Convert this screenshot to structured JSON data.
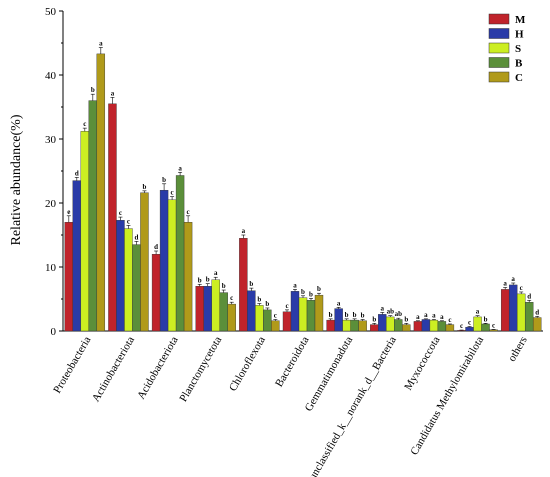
{
  "chart_data": {
    "type": "bar",
    "ylabel": "Relative abundance(%)",
    "ylim": [
      0,
      50
    ],
    "yticks": [
      0,
      10,
      20,
      30,
      40,
      50
    ],
    "grid": false,
    "legend_position": "top-right",
    "categories": [
      "Proteobacteria",
      "Actinobacteriota",
      "Acidobacteriota",
      "Planctomycetota",
      "Chloroflexota",
      "Bacteroidota",
      "Gemmatimonadota",
      "unclassified_k__norank_d__Bacteria",
      "Myxococcota",
      "Candidatus Methylomirabilota",
      "others"
    ],
    "series": [
      {
        "name": "M",
        "color": "#C0232B",
        "values": [
          17,
          35.5,
          12,
          7,
          14.5,
          3,
          1.7,
          1,
          1.5,
          0.1,
          6.5
        ],
        "errors": [
          1,
          1,
          0.5,
          0.3,
          0.5,
          0.3,
          0.2,
          0.2,
          0.1,
          0.05,
          0.3
        ],
        "letters": [
          "e",
          "a",
          "d",
          "b",
          "a",
          "c",
          "b",
          "b",
          "a",
          "c",
          "a"
        ]
      },
      {
        "name": "H",
        "color": "#2A3BA8",
        "values": [
          23.5,
          17.3,
          22,
          7,
          6.3,
          6.2,
          3.5,
          2.6,
          1.8,
          0.6,
          7.2
        ],
        "errors": [
          0.5,
          0.5,
          1,
          0.4,
          0.4,
          0.3,
          0.2,
          0.3,
          0.1,
          0.1,
          0.3
        ],
        "letters": [
          "d",
          "c",
          "b",
          "b",
          "b",
          "a",
          "a",
          "a",
          "a",
          "c",
          "a"
        ]
      },
      {
        "name": "S",
        "color": "#CCEE22",
        "values": [
          31.2,
          16,
          20.5,
          8,
          4,
          5.2,
          1.7,
          2.2,
          1.7,
          2.2,
          5.8
        ],
        "errors": [
          0.5,
          0.5,
          0.5,
          0.4,
          0.3,
          0.3,
          0.2,
          0.2,
          0.1,
          0.2,
          0.3
        ],
        "letters": [
          "c",
          "c",
          "c",
          "a",
          "b",
          "b",
          "b",
          "ab",
          "a",
          "a",
          "c"
        ]
      },
      {
        "name": "B",
        "color": "#5B8F3A",
        "values": [
          36,
          13.5,
          24.3,
          6,
          3.3,
          4.8,
          1.7,
          1.8,
          1.5,
          1.1,
          4.5
        ],
        "errors": [
          1,
          0.5,
          0.5,
          0.4,
          0.3,
          0.3,
          0.2,
          0.2,
          0.1,
          0.1,
          0.3
        ],
        "letters": [
          "b",
          "d",
          "a",
          "b",
          "b",
          "b",
          "b",
          "ab",
          "a",
          "b",
          "d"
        ]
      },
      {
        "name": "C",
        "color": "#B09A1A",
        "values": [
          43.3,
          21.6,
          17,
          4.2,
          1.6,
          5.6,
          1.6,
          1,
          1,
          0.2,
          2.1
        ],
        "errors": [
          1,
          0.3,
          1,
          0.3,
          0.2,
          0.3,
          0.2,
          0.2,
          0.1,
          0.05,
          0.2
        ],
        "letters": [
          "a",
          "b",
          "c",
          "c",
          "c",
          "b",
          "b",
          "b",
          "c",
          "c",
          "d"
        ]
      }
    ]
  }
}
